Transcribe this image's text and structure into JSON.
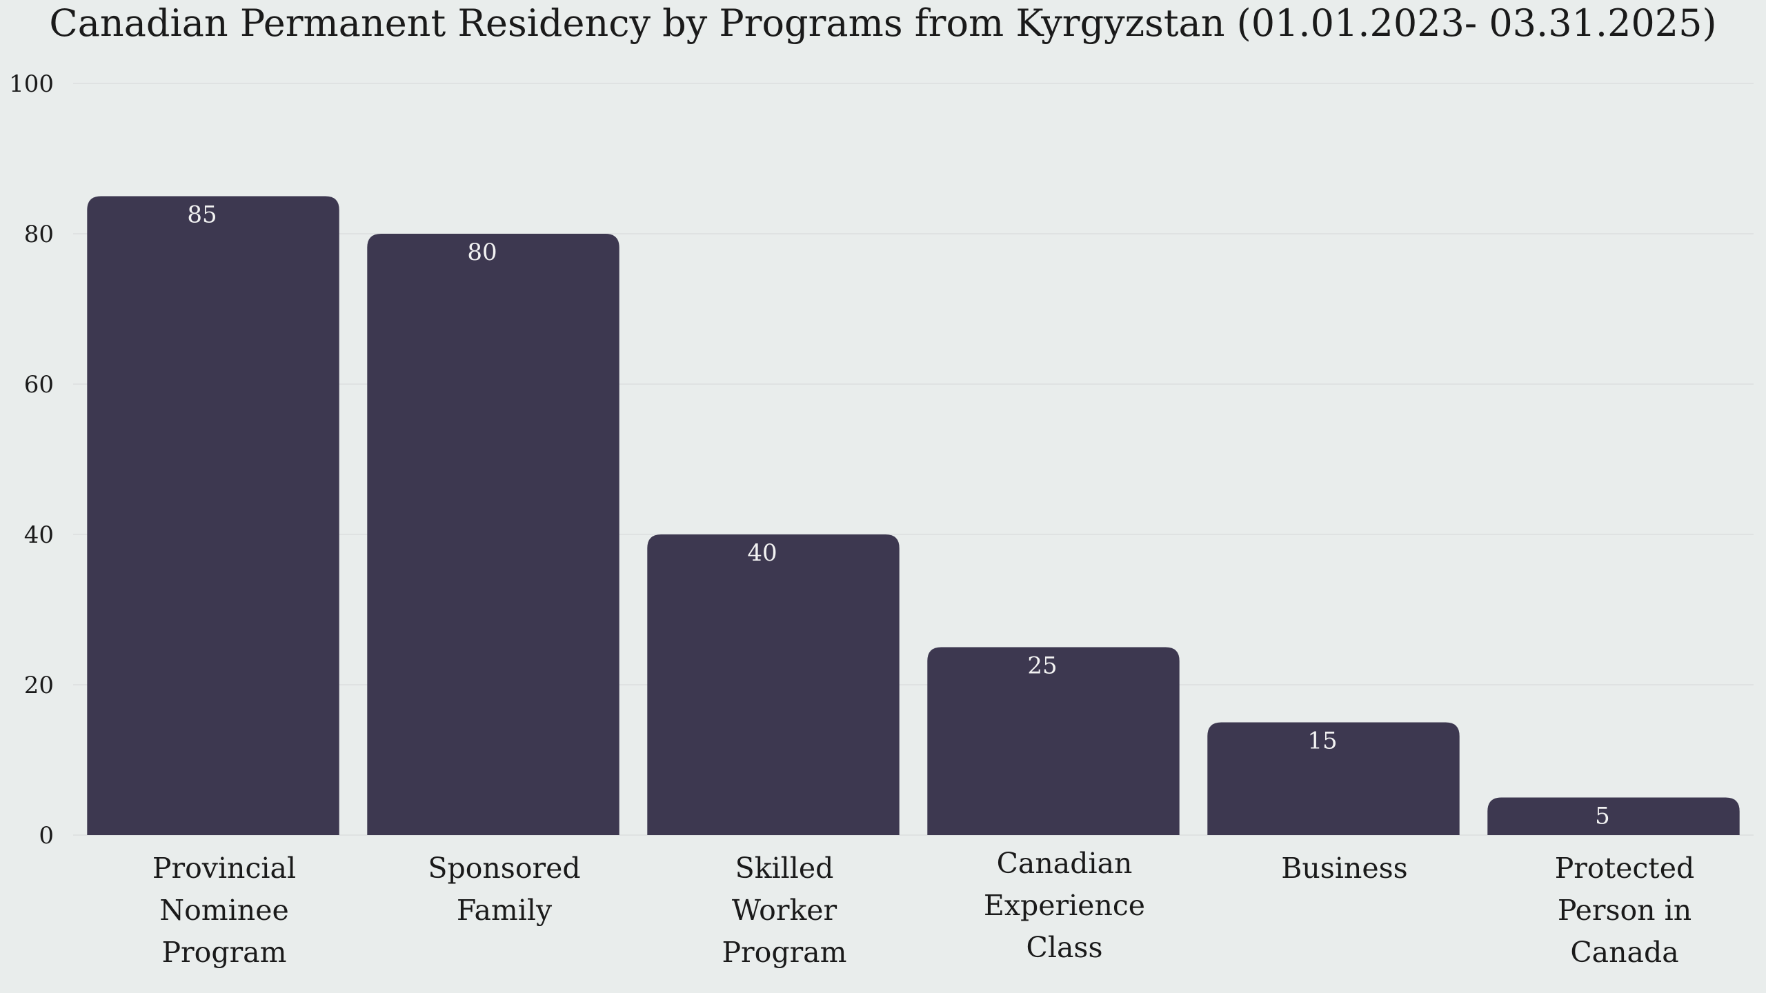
{
  "chart_data": {
    "type": "bar",
    "title": "Canadian Permanent Residency by Programs from Kyrgyzstan (01.01.2023- 03.31.2025)",
    "xlabel": "",
    "ylabel": "",
    "categories": [
      [
        "Provincial",
        "Nominee",
        "Program"
      ],
      [
        "Sponsored",
        "Family"
      ],
      [
        "Skilled",
        "Worker",
        "Program"
      ],
      [
        "Canadian",
        "Experience",
        "Class"
      ],
      [
        "Business"
      ],
      [
        "Protected",
        "Person in",
        "Canada"
      ]
    ],
    "values": [
      85,
      80,
      40,
      25,
      15,
      5
    ],
    "ylim": [
      0,
      100
    ],
    "yticks": [
      0,
      20,
      40,
      60,
      80,
      100
    ],
    "grid": true,
    "legend": "none",
    "colors": {
      "bar": "#3d3850",
      "background": "#e9edec",
      "gridline": "#dcdfdf",
      "data_label": "#f2f2f2",
      "text": "#1a1a1a"
    }
  }
}
